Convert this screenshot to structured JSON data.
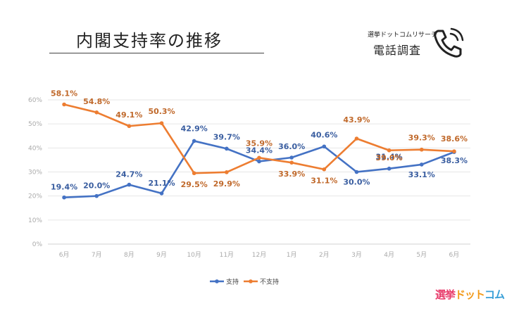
{
  "header": {
    "title": "内閣支持率の推移",
    "badge_small": "選挙ドットコムリサーチ",
    "badge_main": "電話調査"
  },
  "logo": {
    "part1": "選挙",
    "part2": "ドット",
    "part3": "コム"
  },
  "icons": {
    "badge": "phone-icon"
  },
  "chart_data": {
    "type": "line",
    "categories": [
      "6月",
      "7月",
      "8月",
      "9月",
      "10月",
      "11月",
      "12月",
      "1月",
      "2月",
      "3月",
      "4月",
      "5月",
      "6月"
    ],
    "series": [
      {
        "name": "支持",
        "color": "#4472c4",
        "values": [
          19.4,
          20.0,
          24.7,
          21.1,
          42.9,
          39.7,
          34.4,
          36.0,
          40.6,
          30.0,
          31.4,
          33.1,
          38.3
        ],
        "labels": [
          "19.4%",
          "20.0%",
          "24.7%",
          "21.1%",
          "42.9%",
          "39.7%",
          "34.4%",
          "36.0%",
          "40.6%",
          "30.0%",
          "31.4%",
          "33.1%",
          "38.3%"
        ]
      },
      {
        "name": "不支持",
        "color": "#ed7d31",
        "values": [
          58.1,
          54.8,
          49.1,
          50.3,
          29.5,
          29.9,
          35.9,
          33.9,
          31.1,
          43.9,
          39.0,
          39.3,
          38.6
        ],
        "labels": [
          "58.1%",
          "54.8%",
          "49.1%",
          "50.3%",
          "29.5%",
          "29.9%",
          "35.9%",
          "33.9%",
          "31.1%",
          "43.9%",
          "39.0%",
          "39.3%",
          "38.6%"
        ]
      }
    ],
    "yticks": [
      "0%",
      "10%",
      "20%",
      "30%",
      "40%",
      "50%",
      "60%"
    ],
    "ylim": [
      0,
      60
    ],
    "grid": true,
    "legend": "bottom"
  }
}
